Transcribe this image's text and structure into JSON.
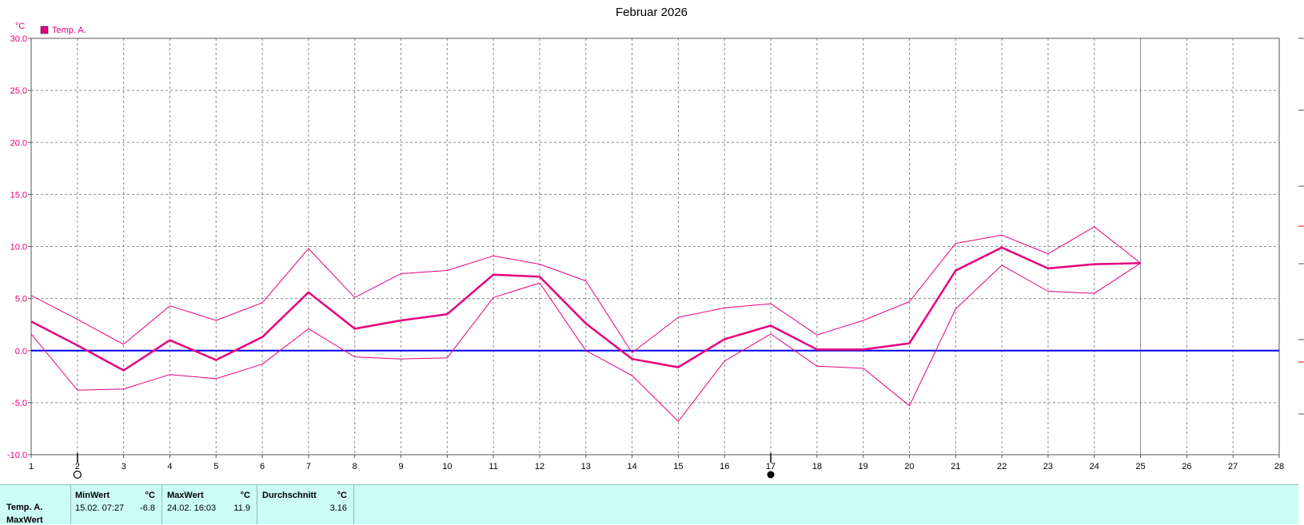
{
  "title": "Februar 2026",
  "unit": "°C",
  "legend": {
    "label": "Temp. A.",
    "color": "#e6007e"
  },
  "colors": {
    "series": "#e6007e",
    "zero_line": "#0000e6",
    "grid": "#8a8a8a",
    "panel_bg": "#ccfcf6"
  },
  "chart_data": {
    "type": "line",
    "title": "Februar 2026",
    "ylabel": "°C",
    "ylim": [
      -10,
      30
    ],
    "yticks": [
      "-10.0",
      "-5.0",
      "0.0",
      "5.0",
      "10.0",
      "15.0",
      "20.0",
      "25.0",
      "30.0"
    ],
    "xlim": [
      1,
      28
    ],
    "xticks": [
      "1",
      "2",
      "3",
      "4",
      "5",
      "6",
      "7",
      "8",
      "9",
      "10",
      "11",
      "12",
      "13",
      "14",
      "15",
      "16",
      "17",
      "18",
      "19",
      "20",
      "21",
      "22",
      "23",
      "24",
      "25",
      "26",
      "27",
      "28"
    ],
    "grid": true,
    "legend_position": "top-left",
    "series": [
      {
        "name": "Temp. A.",
        "role": "mean",
        "x": [
          1,
          2,
          3,
          4,
          5,
          6,
          7,
          8,
          9,
          10,
          11,
          12,
          13,
          14,
          15,
          16,
          17,
          18,
          19,
          20,
          21,
          22,
          23,
          24,
          25
        ],
        "values": [
          2.8,
          0.5,
          -1.9,
          1.0,
          -0.9,
          1.3,
          5.6,
          2.1,
          2.9,
          3.5,
          7.3,
          7.1,
          2.6,
          -0.8,
          -1.6,
          1.1,
          2.4,
          0.1,
          0.1,
          0.7,
          7.7,
          9.9,
          7.9,
          8.3,
          8.4
        ]
      },
      {
        "role": "max",
        "x": [
          1,
          2,
          3,
          4,
          5,
          6,
          7,
          8,
          9,
          10,
          11,
          12,
          13,
          14,
          15,
          16,
          17,
          18,
          19,
          20,
          21,
          22,
          23,
          24,
          25
        ],
        "values": [
          5.3,
          3.0,
          0.6,
          4.3,
          2.9,
          4.6,
          9.8,
          5.1,
          7.4,
          7.7,
          9.1,
          8.3,
          6.7,
          -0.2,
          3.2,
          4.1,
          4.5,
          1.5,
          2.9,
          4.7,
          10.3,
          11.1,
          9.3,
          11.9,
          8.4
        ]
      },
      {
        "role": "min",
        "x": [
          1,
          2,
          3,
          4,
          5,
          6,
          7,
          8,
          9,
          10,
          11,
          12,
          13,
          14,
          15,
          16,
          17,
          18,
          19,
          20,
          21,
          22,
          23,
          24,
          25
        ],
        "values": [
          1.6,
          -3.8,
          -3.7,
          -2.3,
          -2.7,
          -1.3,
          2.1,
          -0.6,
          -0.8,
          -0.7,
          5.1,
          6.5,
          0.0,
          -2.4,
          -6.8,
          -1.0,
          1.6,
          -1.5,
          -1.7,
          -5.3,
          4.0,
          8.2,
          5.7,
          5.5,
          8.4
        ]
      }
    ],
    "current_day": 25
  },
  "moon_phases": [
    {
      "day": 2,
      "phase": "full-moon"
    },
    {
      "day": 17,
      "phase": "new-moon"
    }
  ],
  "stats": {
    "row_labels": [
      "Temp. A.",
      "MaxWert"
    ],
    "min": {
      "header": "MinWert",
      "unit": "°C",
      "datetime": "15.02.  07:27",
      "value": "-6.8"
    },
    "max": {
      "header": "MaxWert",
      "unit": "°C",
      "datetime": "24.02.  16:03",
      "value": "11.9"
    },
    "avg": {
      "header": "Durchschnitt",
      "unit": "°C",
      "value": "3.16"
    }
  }
}
